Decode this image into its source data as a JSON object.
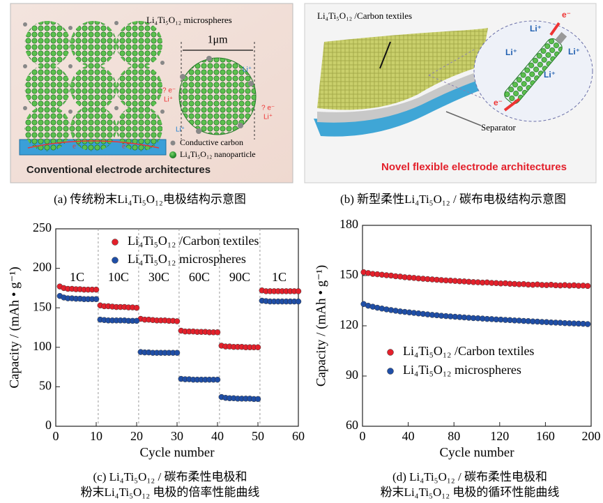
{
  "panels": {
    "a": {
      "caption": "(a) 传统粉末Li₄Ti₅O₁₂电极结构示意图",
      "microspheres": "Li₄Ti₅O₁₂ microspheres",
      "scale": "1μm",
      "carbon": "Conductive carbon",
      "nanoparticle": "Li₄Ti₅O₁₂  nanoparticle",
      "electron": "e⁻",
      "ion": "Li⁺",
      "unknown_electron": "? e⁻",
      "banner": "Conventional electrode architectures"
    },
    "b": {
      "caption": "(b) 新型柔性Li₄Ti₅O₁₂ / 碳布电极结构示意图",
      "textile": "Li₄Ti₅O₁₂ /Carbon textiles",
      "separator": "Separator",
      "ion": "Li⁺",
      "electron": "e⁻",
      "banner": "Novel flexible electrode architectures"
    }
  },
  "chart_data": [
    {
      "type": "scatter",
      "caption": [
        "(c) Li₄Ti₅O₁₂ / 碳布柔性电极和",
        "粉末Li₄Ti₅O₁₂ 电极的倍率性能曲线"
      ],
      "xlabel": "Cycle number",
      "ylabel": "Capacity / (mAh • g⁻¹)",
      "xlim": [
        0,
        60
      ],
      "ylim": [
        0,
        250
      ],
      "xticks": [
        0,
        10,
        20,
        30,
        40,
        50,
        60
      ],
      "yticks": [
        0,
        50,
        100,
        150,
        200,
        250
      ],
      "legend": "top",
      "rate_labels": [
        "1C",
        "10C",
        "30C",
        "60C",
        "90C",
        "1C"
      ],
      "dividers": [
        10.5,
        20.5,
        30.5,
        40.5,
        50.5
      ],
      "x": [
        1,
        2,
        3,
        4,
        5,
        6,
        7,
        8,
        9,
        10,
        11,
        12,
        13,
        14,
        15,
        16,
        17,
        18,
        19,
        20,
        21,
        22,
        23,
        24,
        25,
        26,
        27,
        28,
        29,
        30,
        31,
        32,
        33,
        34,
        35,
        36,
        37,
        38,
        39,
        40,
        41,
        42,
        43,
        44,
        45,
        46,
        47,
        48,
        49,
        50,
        51,
        52,
        53,
        54,
        55,
        56,
        57,
        58,
        59,
        60
      ],
      "series": [
        {
          "name": "Li₄Ti₅O₁₂ /Carbon textiles",
          "color": "#e3202b",
          "values": [
            177,
            175,
            174,
            174,
            173.5,
            173.5,
            173,
            173,
            173,
            173,
            153,
            152,
            152,
            151.5,
            151,
            151,
            151,
            150.5,
            150.5,
            150,
            136,
            135,
            135,
            134.5,
            134,
            134,
            134,
            133.5,
            133.5,
            133,
            121,
            120,
            120,
            120,
            119.5,
            119.5,
            119.5,
            119,
            119,
            119,
            102,
            101,
            101,
            100.5,
            100.5,
            100.5,
            100,
            100,
            100,
            100,
            172,
            171,
            171,
            171,
            171,
            171,
            171,
            171,
            171,
            171
          ]
        },
        {
          "name": "Li₄Ti₅O₁₂ microspheres",
          "color": "#1f4ea6",
          "values": [
            165,
            163,
            162,
            162,
            161.5,
            161.5,
            161,
            161,
            161,
            161,
            135,
            134.5,
            134,
            134,
            134,
            134,
            134,
            133.5,
            133.5,
            133.5,
            94,
            93.5,
            93.5,
            93,
            93,
            93,
            93,
            93,
            93,
            93,
            60,
            59.5,
            59.5,
            59,
            59,
            59,
            59,
            59,
            59,
            59,
            37,
            36,
            35.5,
            35.5,
            35,
            35,
            35,
            35,
            34.5,
            34.5,
            159,
            158.5,
            158,
            158,
            158,
            158,
            158,
            158,
            158,
            158
          ]
        }
      ]
    },
    {
      "type": "scatter",
      "caption": [
        "(d) Li₄Ti₅O₁₂ / 碳布柔性电极和",
        "粉末Li₄Ti₅O₁₂ 电极的循环性能曲线"
      ],
      "xlabel": "Cycle number",
      "ylabel": "Capacity / (mAh • g⁻¹)",
      "xlim": [
        0,
        200
      ],
      "ylim": [
        60,
        180
      ],
      "xticks": [
        0,
        40,
        80,
        120,
        160,
        200
      ],
      "yticks": [
        60,
        90,
        120,
        150,
        180
      ],
      "legend": "lower-left",
      "x": [
        1,
        5,
        9,
        13,
        17,
        21,
        25,
        29,
        33,
        37,
        41,
        45,
        49,
        53,
        57,
        61,
        65,
        69,
        73,
        77,
        81,
        85,
        89,
        93,
        97,
        101,
        105,
        109,
        113,
        117,
        121,
        125,
        129,
        133,
        137,
        141,
        145,
        149,
        153,
        157,
        161,
        165,
        169,
        173,
        177,
        181,
        185,
        189,
        193,
        197
      ],
      "series": [
        {
          "name": "Li₄Ti₅O₁₂ /Carbon textiles",
          "color": "#e3202b",
          "values": [
            152,
            151.5,
            151,
            150.8,
            150.5,
            150.2,
            150,
            149.6,
            149.4,
            149,
            148.8,
            148.6,
            148.3,
            148.1,
            147.9,
            147.7,
            147.5,
            147.3,
            147.1,
            147,
            146.8,
            146.6,
            146.5,
            146.3,
            146.1,
            146,
            145.8,
            145.9,
            145.6,
            145.5,
            145.3,
            145.4,
            145.1,
            145,
            144.8,
            144.9,
            144.6,
            144.5,
            144.7,
            144.4,
            144.3,
            144.5,
            144.2,
            144.1,
            144.3,
            144,
            144.2,
            143.9,
            144,
            143.8
          ]
        },
        {
          "name": "Li₄Ti₅O₁₂ microspheres",
          "color": "#1f4ea6",
          "values": [
            133,
            132,
            131.4,
            130.8,
            130.3,
            129.8,
            129.4,
            129,
            128.6,
            128.3,
            128,
            127.7,
            127.4,
            127.1,
            126.8,
            126.5,
            126.3,
            126,
            125.8,
            125.6,
            125.4,
            125.2,
            125,
            124.8,
            124.6,
            124.5,
            124.3,
            124.1,
            124,
            123.8,
            123.7,
            123.5,
            123.4,
            123.2,
            123.1,
            122.9,
            122.8,
            122.6,
            122.5,
            122.3,
            122.2,
            122,
            121.9,
            121.8,
            121.6,
            121.5,
            121.4,
            121.3,
            121.2,
            121
          ]
        }
      ]
    }
  ]
}
